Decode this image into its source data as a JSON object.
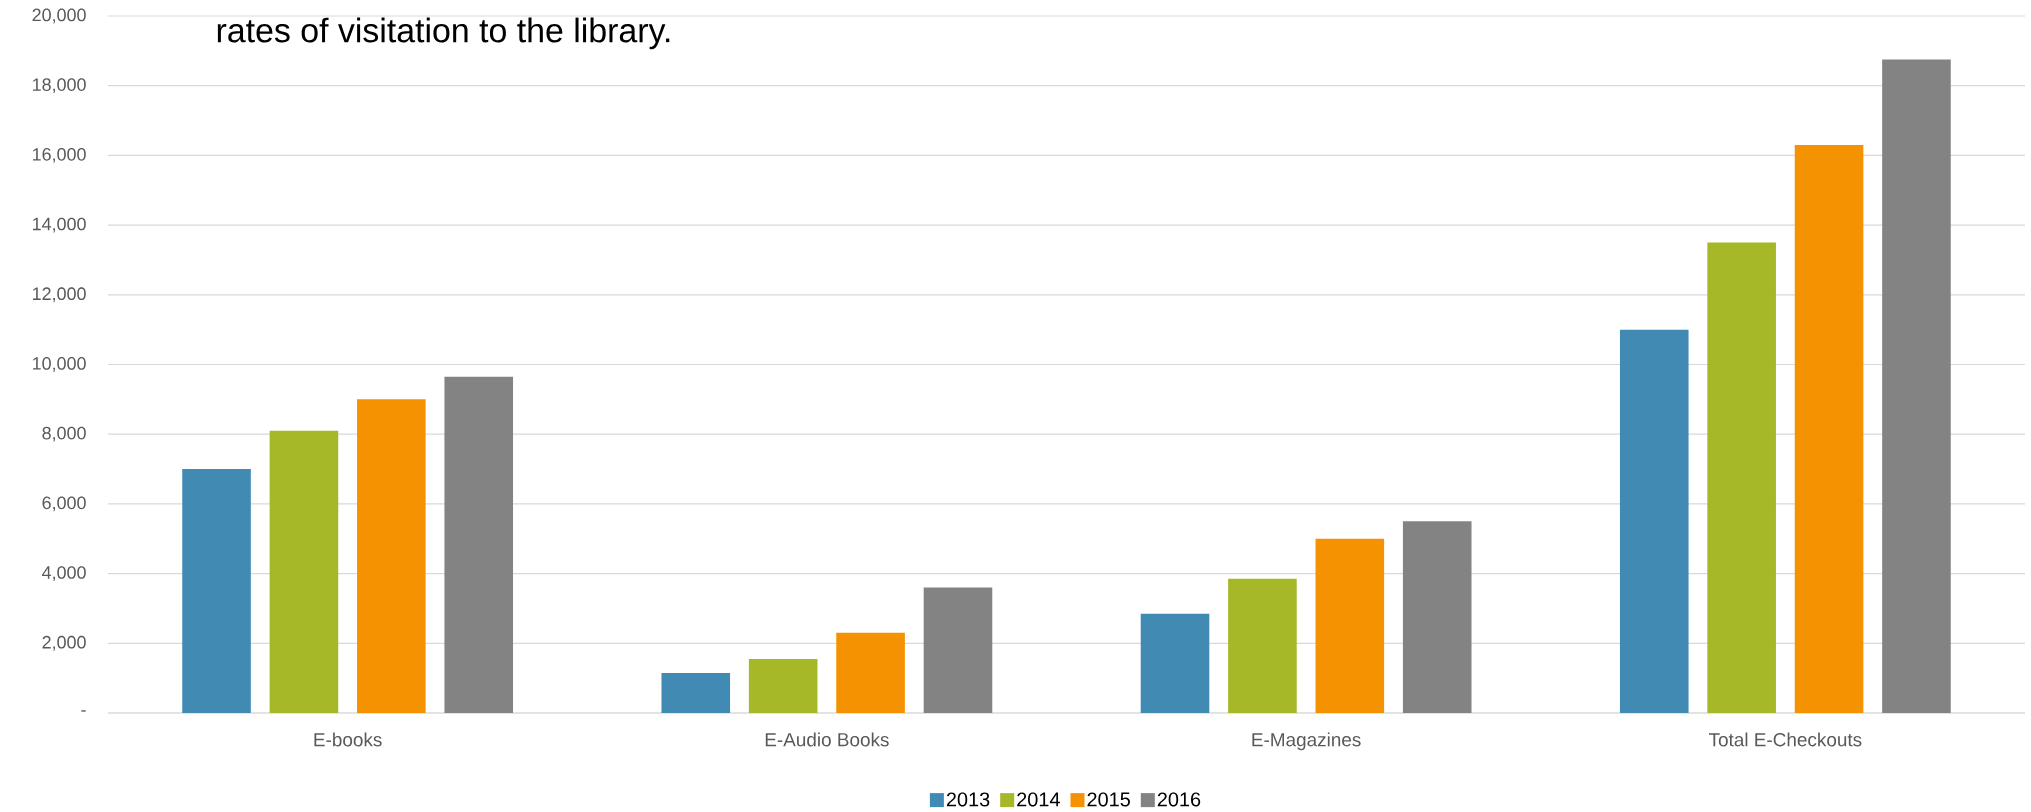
{
  "chart_data": {
    "type": "bar",
    "annotations": [
      "rates of visitation to the library."
    ],
    "categories": [
      "E-books",
      "E-Audio Books",
      "E-Magazines",
      "Total E-Checkouts"
    ],
    "series": [
      {
        "name": "2013",
        "color": "#418ab3",
        "values": [
          7000,
          1150,
          2850,
          11000
        ]
      },
      {
        "name": "2014",
        "color": "#a6b727",
        "values": [
          8100,
          1550,
          3850,
          13500
        ]
      },
      {
        "name": "2015",
        "color": "#f59201",
        "values": [
          9000,
          2300,
          5000,
          16300
        ]
      },
      {
        "name": "2016",
        "color": "#838383",
        "values": [
          9650,
          3600,
          5500,
          18750
        ]
      }
    ],
    "ylim": [
      0,
      20000
    ],
    "yticks": [
      {
        "value": 0,
        "label": "-"
      },
      {
        "value": 2000,
        "label": "2,000"
      },
      {
        "value": 4000,
        "label": "4,000"
      },
      {
        "value": 6000,
        "label": "6,000"
      },
      {
        "value": 8000,
        "label": "8,000"
      },
      {
        "value": 10000,
        "label": "10,000"
      },
      {
        "value": 12000,
        "label": "12,000"
      },
      {
        "value": 14000,
        "label": "14,000"
      },
      {
        "value": 16000,
        "label": "16,000"
      },
      {
        "value": 18000,
        "label": "18,000"
      },
      {
        "value": 20000,
        "label": "20,000"
      }
    ],
    "grid": "y",
    "legend": "bottom"
  }
}
